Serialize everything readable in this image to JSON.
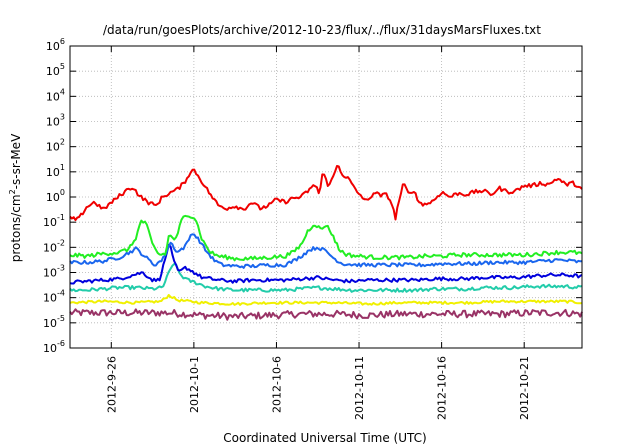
{
  "chart_data": {
    "type": "line",
    "title": "/data/run/goesPlots/archive/2012-10-23/flux/../flux/31daysMarsFluxes.txt",
    "xlabel": "Coordinated Universal Time (UTC)",
    "ylabel": {
      "pre": "protons/cm",
      "sup": "2",
      "post": "-s-sr-MeV"
    },
    "yscale": "log",
    "ylim": [
      -6,
      6
    ],
    "xlim": [
      0,
      31
    ],
    "grid": true,
    "legend": "none",
    "xticks": [
      {
        "x": 2.5,
        "label": "2012-9-26"
      },
      {
        "x": 7.5,
        "label": "2012-10-1"
      },
      {
        "x": 12.5,
        "label": "2012-10-6"
      },
      {
        "x": 17.5,
        "label": "2012-10-11"
      },
      {
        "x": 22.5,
        "label": "2012-10-16"
      },
      {
        "x": 27.5,
        "label": "2012-10-21"
      }
    ],
    "yticks": [
      {
        "exp": -6,
        "base": "10",
        "sup": "-6"
      },
      {
        "exp": -5,
        "base": "10",
        "sup": "-5"
      },
      {
        "exp": -4,
        "base": "10",
        "sup": "-4"
      },
      {
        "exp": -3,
        "base": "10",
        "sup": "-3"
      },
      {
        "exp": -2,
        "base": "10",
        "sup": "-2"
      },
      {
        "exp": -1,
        "base": "10",
        "sup": "-1"
      },
      {
        "exp": 0,
        "base": "10",
        "sup": "0"
      },
      {
        "exp": 1,
        "base": "10",
        "sup": "1"
      },
      {
        "exp": 2,
        "base": "10",
        "sup": "2"
      },
      {
        "exp": 3,
        "base": "10",
        "sup": "3"
      },
      {
        "exp": 4,
        "base": "10",
        "sup": "4"
      },
      {
        "exp": 5,
        "base": "10",
        "sup": "5"
      },
      {
        "exp": 6,
        "base": "10",
        "sup": "6"
      }
    ],
    "series": [
      {
        "color": "#f00000",
        "noise": 0.08,
        "points": [
          [
            0,
            -0.85
          ],
          [
            0.5,
            -0.9
          ],
          [
            1.0,
            -0.4
          ],
          [
            1.5,
            -0.2
          ],
          [
            2.0,
            -0.5
          ],
          [
            3.0,
            0.05
          ],
          [
            3.5,
            0.3
          ],
          [
            3.8,
            0.4
          ],
          [
            4.2,
            0.05
          ],
          [
            4.7,
            -0.2
          ],
          [
            5.2,
            -0.35
          ],
          [
            5.6,
            0.0
          ],
          [
            6.0,
            0.15
          ],
          [
            6.5,
            0.3
          ],
          [
            6.9,
            0.55
          ],
          [
            7.2,
            0.9
          ],
          [
            7.5,
            1.1
          ],
          [
            7.8,
            0.8
          ],
          [
            8.1,
            0.5
          ],
          [
            8.5,
            0.1
          ],
          [
            9.0,
            -0.35
          ],
          [
            9.5,
            -0.45
          ],
          [
            10.0,
            -0.35
          ],
          [
            10.5,
            -0.5
          ],
          [
            11.0,
            -0.2
          ],
          [
            11.5,
            -0.45
          ],
          [
            12.0,
            -0.35
          ],
          [
            12.5,
            -0.1
          ],
          [
            13.0,
            -0.2
          ],
          [
            13.5,
            -0.05
          ],
          [
            14.0,
            0.0
          ],
          [
            14.5,
            0.3
          ],
          [
            14.9,
            0.5
          ],
          [
            15.1,
            0.05
          ],
          [
            15.3,
            1.0
          ],
          [
            15.6,
            0.5
          ],
          [
            15.9,
            0.7
          ],
          [
            16.2,
            1.3
          ],
          [
            16.5,
            0.9
          ],
          [
            16.9,
            0.7
          ],
          [
            17.3,
            0.25
          ],
          [
            17.7,
            0.0
          ],
          [
            18.0,
            -0.2
          ],
          [
            18.4,
            0.2
          ],
          [
            18.8,
            0.05
          ],
          [
            19.2,
            0.1
          ],
          [
            19.5,
            -0.3
          ],
          [
            19.7,
            -0.85
          ],
          [
            19.9,
            -0.2
          ],
          [
            20.2,
            0.55
          ],
          [
            20.5,
            0.1
          ],
          [
            20.8,
            0.3
          ],
          [
            21.1,
            -0.2
          ],
          [
            21.5,
            -0.3
          ],
          [
            22.0,
            -0.15
          ],
          [
            22.5,
            0.2
          ],
          [
            23.0,
            0.0
          ],
          [
            23.5,
            0.15
          ],
          [
            24.0,
            0.1
          ],
          [
            24.5,
            0.2
          ],
          [
            25.0,
            0.25
          ],
          [
            25.5,
            0.1
          ],
          [
            26.0,
            0.35
          ],
          [
            26.5,
            0.2
          ],
          [
            27.0,
            0.25
          ],
          [
            27.5,
            0.45
          ],
          [
            28.0,
            0.45
          ],
          [
            28.5,
            0.55
          ],
          [
            29.0,
            0.5
          ],
          [
            29.5,
            0.75
          ],
          [
            30.0,
            0.5
          ],
          [
            30.5,
            0.55
          ],
          [
            31.0,
            0.3
          ]
        ]
      },
      {
        "color": "#22ee22",
        "noise": 0.08,
        "points": [
          [
            0,
            -2.3
          ],
          [
            1.0,
            -2.35
          ],
          [
            2.0,
            -2.25
          ],
          [
            3.0,
            -2.2
          ],
          [
            3.6,
            -2.05
          ],
          [
            4.0,
            -1.6
          ],
          [
            4.3,
            -0.95
          ],
          [
            4.6,
            -1.05
          ],
          [
            5.0,
            -1.9
          ],
          [
            5.4,
            -2.3
          ],
          [
            5.8,
            -2.25
          ],
          [
            6.0,
            -1.5
          ],
          [
            6.4,
            -1.7
          ],
          [
            6.8,
            -0.85
          ],
          [
            7.2,
            -0.7
          ],
          [
            7.6,
            -0.85
          ],
          [
            8.0,
            -1.7
          ],
          [
            8.5,
            -2.2
          ],
          [
            9.0,
            -2.35
          ],
          [
            10.0,
            -2.45
          ],
          [
            11.0,
            -2.45
          ],
          [
            12.0,
            -2.4
          ],
          [
            13.0,
            -2.35
          ],
          [
            13.5,
            -2.2
          ],
          [
            14.0,
            -1.9
          ],
          [
            14.4,
            -1.35
          ],
          [
            14.8,
            -1.05
          ],
          [
            15.2,
            -1.3
          ],
          [
            15.5,
            -1.1
          ],
          [
            15.9,
            -1.5
          ],
          [
            16.3,
            -2.1
          ],
          [
            16.8,
            -2.3
          ],
          [
            17.5,
            -2.35
          ],
          [
            18.5,
            -2.4
          ],
          [
            19.5,
            -2.4
          ],
          [
            20.5,
            -2.4
          ],
          [
            21.5,
            -2.35
          ],
          [
            22.5,
            -2.35
          ],
          [
            23.5,
            -2.3
          ],
          [
            24.5,
            -2.3
          ],
          [
            25.5,
            -2.3
          ],
          [
            26.5,
            -2.3
          ],
          [
            27.5,
            -2.3
          ],
          [
            28.5,
            -2.25
          ],
          [
            29.5,
            -2.2
          ],
          [
            30.5,
            -2.2
          ],
          [
            31.0,
            -2.25
          ]
        ]
      },
      {
        "color": "#1a66ee",
        "noise": 0.07,
        "points": [
          [
            0,
            -2.6
          ],
          [
            1.0,
            -2.6
          ],
          [
            2.0,
            -2.55
          ],
          [
            3.0,
            -2.4
          ],
          [
            3.6,
            -2.2
          ],
          [
            4.0,
            -2.05
          ],
          [
            4.6,
            -2.4
          ],
          [
            5.1,
            -2.7
          ],
          [
            5.6,
            -2.5
          ],
          [
            6.1,
            -1.8
          ],
          [
            6.5,
            -2.2
          ],
          [
            7.0,
            -1.95
          ],
          [
            7.4,
            -1.4
          ],
          [
            7.8,
            -1.7
          ],
          [
            8.2,
            -2.1
          ],
          [
            8.7,
            -2.5
          ],
          [
            9.2,
            -2.7
          ],
          [
            10.0,
            -2.75
          ],
          [
            11.0,
            -2.75
          ],
          [
            12.0,
            -2.7
          ],
          [
            13.0,
            -2.7
          ],
          [
            13.5,
            -2.55
          ],
          [
            14.0,
            -2.35
          ],
          [
            14.5,
            -2.1
          ],
          [
            15.0,
            -2.0
          ],
          [
            15.5,
            -2.15
          ],
          [
            16.0,
            -2.45
          ],
          [
            16.5,
            -2.65
          ],
          [
            17.5,
            -2.7
          ],
          [
            18.5,
            -2.7
          ],
          [
            19.5,
            -2.7
          ],
          [
            20.5,
            -2.7
          ],
          [
            21.5,
            -2.7
          ],
          [
            22.5,
            -2.65
          ],
          [
            23.5,
            -2.65
          ],
          [
            24.5,
            -2.65
          ],
          [
            25.5,
            -2.6
          ],
          [
            26.5,
            -2.6
          ],
          [
            27.5,
            -2.6
          ],
          [
            28.5,
            -2.55
          ],
          [
            29.5,
            -2.5
          ],
          [
            30.5,
            -2.55
          ],
          [
            31.0,
            -2.6
          ]
        ]
      },
      {
        "color": "#0000dd",
        "noise": 0.07,
        "points": [
          [
            0,
            -3.4
          ],
          [
            1.0,
            -3.35
          ],
          [
            2.0,
            -3.3
          ],
          [
            3.0,
            -3.25
          ],
          [
            3.8,
            -3.1
          ],
          [
            4.4,
            -3.0
          ],
          [
            5.0,
            -3.3
          ],
          [
            5.4,
            -3.3
          ],
          [
            5.8,
            -2.4
          ],
          [
            6.0,
            -1.8
          ],
          [
            6.3,
            -2.6
          ],
          [
            6.6,
            -3.0
          ],
          [
            7.0,
            -2.8
          ],
          [
            7.4,
            -2.95
          ],
          [
            8.0,
            -3.2
          ],
          [
            9.0,
            -3.3
          ],
          [
            10.0,
            -3.35
          ],
          [
            11.0,
            -3.3
          ],
          [
            12.0,
            -3.3
          ],
          [
            13.0,
            -3.3
          ],
          [
            14.0,
            -3.25
          ],
          [
            15.0,
            -3.2
          ],
          [
            16.0,
            -3.3
          ],
          [
            17.0,
            -3.35
          ],
          [
            18.0,
            -3.3
          ],
          [
            19.0,
            -3.3
          ],
          [
            20.0,
            -3.3
          ],
          [
            21.0,
            -3.3
          ],
          [
            22.0,
            -3.25
          ],
          [
            23.0,
            -3.25
          ],
          [
            24.0,
            -3.25
          ],
          [
            25.0,
            -3.2
          ],
          [
            26.0,
            -3.2
          ],
          [
            27.0,
            -3.2
          ],
          [
            28.0,
            -3.15
          ],
          [
            29.0,
            -3.1
          ],
          [
            30.0,
            -3.1
          ],
          [
            31.0,
            -3.15
          ]
        ]
      },
      {
        "color": "#22ccaa",
        "noise": 0.07,
        "points": [
          [
            0,
            -3.7
          ],
          [
            1.0,
            -3.7
          ],
          [
            2.0,
            -3.65
          ],
          [
            3.0,
            -3.6
          ],
          [
            4.0,
            -3.6
          ],
          [
            5.0,
            -3.65
          ],
          [
            5.6,
            -3.6
          ],
          [
            6.0,
            -3.0
          ],
          [
            6.3,
            -2.6
          ],
          [
            6.7,
            -3.1
          ],
          [
            7.1,
            -3.3
          ],
          [
            7.6,
            -3.4
          ],
          [
            8.2,
            -3.55
          ],
          [
            9.0,
            -3.65
          ],
          [
            10.0,
            -3.7
          ],
          [
            11.0,
            -3.7
          ],
          [
            12.0,
            -3.7
          ],
          [
            13.0,
            -3.7
          ],
          [
            14.0,
            -3.65
          ],
          [
            15.0,
            -3.6
          ],
          [
            16.0,
            -3.65
          ],
          [
            17.0,
            -3.7
          ],
          [
            18.0,
            -3.7
          ],
          [
            19.0,
            -3.7
          ],
          [
            20.0,
            -3.7
          ],
          [
            21.0,
            -3.7
          ],
          [
            22.0,
            -3.65
          ],
          [
            23.0,
            -3.65
          ],
          [
            24.0,
            -3.65
          ],
          [
            25.0,
            -3.6
          ],
          [
            26.0,
            -3.6
          ],
          [
            27.0,
            -3.6
          ],
          [
            28.0,
            -3.55
          ],
          [
            29.0,
            -3.55
          ],
          [
            30.0,
            -3.55
          ],
          [
            31.0,
            -3.6
          ]
        ]
      },
      {
        "color": "#f0f000",
        "noise": 0.05,
        "points": [
          [
            0,
            -4.2
          ],
          [
            2.0,
            -4.15
          ],
          [
            4.0,
            -4.2
          ],
          [
            5.5,
            -4.15
          ],
          [
            6.0,
            -3.9
          ],
          [
            6.5,
            -4.1
          ],
          [
            8.0,
            -4.2
          ],
          [
            10.0,
            -4.25
          ],
          [
            12.0,
            -4.2
          ],
          [
            14.0,
            -4.2
          ],
          [
            16.0,
            -4.2
          ],
          [
            18.0,
            -4.25
          ],
          [
            20.0,
            -4.2
          ],
          [
            22.0,
            -4.2
          ],
          [
            24.0,
            -4.2
          ],
          [
            26.0,
            -4.15
          ],
          [
            28.0,
            -4.15
          ],
          [
            30.0,
            -4.15
          ],
          [
            31.0,
            -4.2
          ]
        ]
      },
      {
        "color": "#993366",
        "noise": 0.14,
        "points": [
          [
            0,
            -4.6
          ],
          [
            2.0,
            -4.6
          ],
          [
            4.0,
            -4.6
          ],
          [
            6.0,
            -4.6
          ],
          [
            8.0,
            -4.7
          ],
          [
            10.0,
            -4.75
          ],
          [
            12.0,
            -4.7
          ],
          [
            14.0,
            -4.65
          ],
          [
            16.0,
            -4.65
          ],
          [
            18.0,
            -4.7
          ],
          [
            20.0,
            -4.65
          ],
          [
            22.0,
            -4.65
          ],
          [
            24.0,
            -4.65
          ],
          [
            26.0,
            -4.65
          ],
          [
            28.0,
            -4.6
          ],
          [
            30.0,
            -4.6
          ],
          [
            31.0,
            -4.65
          ]
        ]
      }
    ]
  }
}
